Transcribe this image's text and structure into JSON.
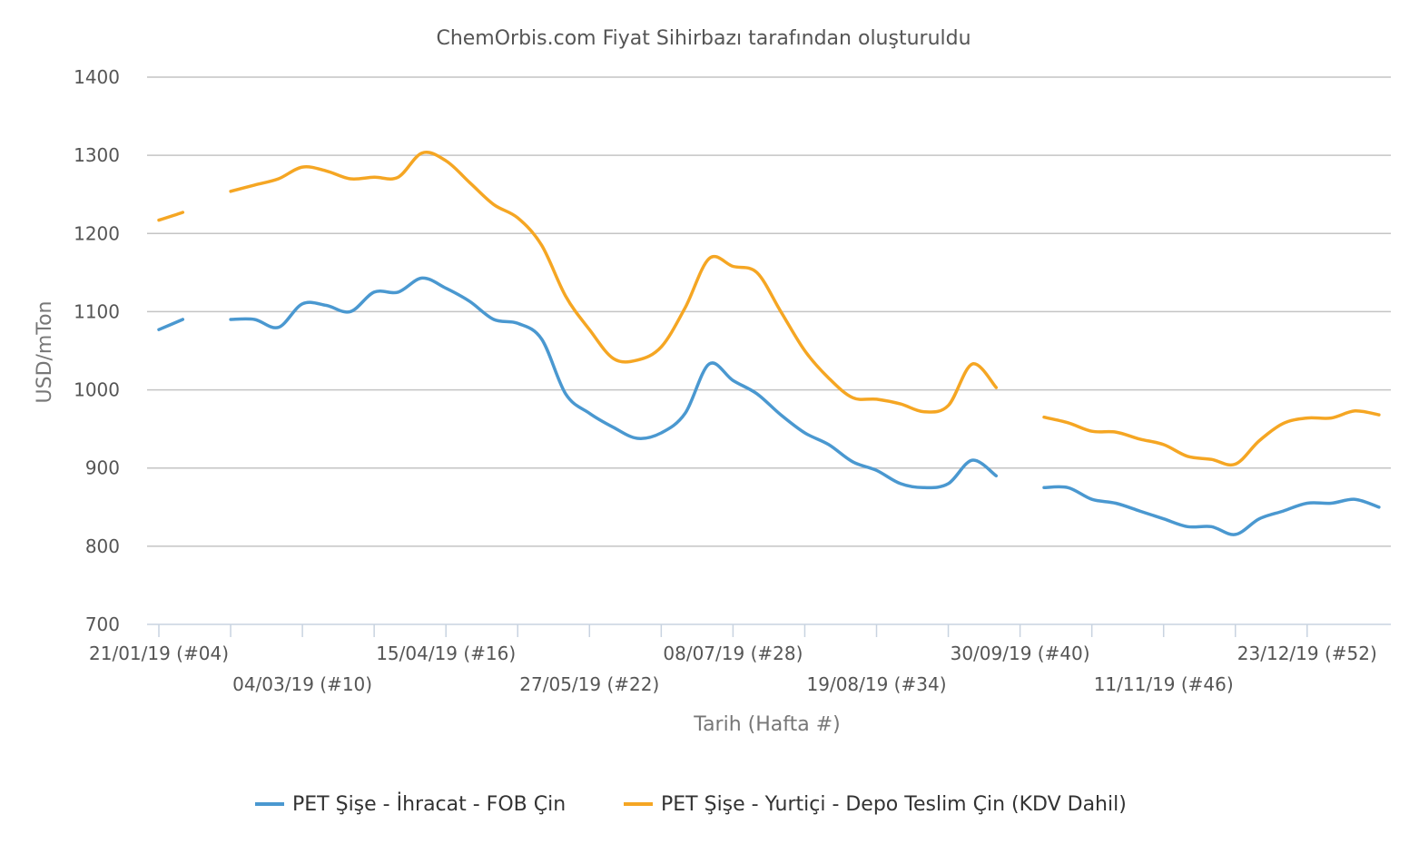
{
  "chart_data": {
    "type": "line",
    "subtitle": "ChemOrbis.com Fiyat Sihirbazı tarafından oluşturuldu",
    "xlabel": "Tarih (Hafta #)",
    "ylabel": "USD/mTon",
    "ylim": [
      700,
      1400
    ],
    "yticks": [
      700,
      800,
      900,
      1000,
      1100,
      1200,
      1300,
      1400
    ],
    "grid": true,
    "legend_position": "bottom",
    "x_range_weeks": [
      4,
      52
    ],
    "x_tick_labels": [
      {
        "week": 4,
        "label": "21/01/19 (#04)",
        "row": 0
      },
      {
        "week": 10,
        "label": "04/03/19 (#10)",
        "row": 1
      },
      {
        "week": 16,
        "label": "15/04/19 (#16)",
        "row": 0
      },
      {
        "week": 22,
        "label": "27/05/19 (#22)",
        "row": 1
      },
      {
        "week": 28,
        "label": "08/07/19 (#28)",
        "row": 0
      },
      {
        "week": 34,
        "label": "19/08/19 (#34)",
        "row": 1
      },
      {
        "week": 40,
        "label": "30/09/19 (#40)",
        "row": 0
      },
      {
        "week": 46,
        "label": "11/11/19 (#46)",
        "row": 1
      },
      {
        "week": 52,
        "label": "23/12/19 (#52)",
        "row": 0
      }
    ],
    "series": [
      {
        "name": "PET Şişe - İhracat - FOB Çin",
        "color": "#4a98d0",
        "segments": [
          [
            [
              4,
              1077
            ],
            [
              5,
              1090
            ]
          ],
          [
            [
              7,
              1090
            ],
            [
              8,
              1090
            ],
            [
              9,
              1080
            ],
            [
              10,
              1110
            ],
            [
              11,
              1108
            ],
            [
              12,
              1100
            ],
            [
              13,
              1125
            ],
            [
              14,
              1125
            ],
            [
              15,
              1143
            ],
            [
              16,
              1130
            ],
            [
              17,
              1113
            ],
            [
              18,
              1090
            ],
            [
              19,
              1085
            ],
            [
              20,
              1065
            ],
            [
              21,
              995
            ],
            [
              22,
              970
            ],
            [
              23,
              952
            ],
            [
              24,
              938
            ],
            [
              25,
              945
            ],
            [
              26,
              970
            ],
            [
              27,
              1033
            ],
            [
              28,
              1012
            ],
            [
              29,
              995
            ],
            [
              30,
              968
            ],
            [
              31,
              945
            ],
            [
              32,
              930
            ],
            [
              33,
              908
            ],
            [
              34,
              897
            ],
            [
              35,
              880
            ],
            [
              36,
              875
            ],
            [
              37,
              880
            ],
            [
              38,
              910
            ],
            [
              39,
              890
            ]
          ],
          [
            [
              41,
              875
            ],
            [
              42,
              875
            ],
            [
              43,
              860
            ],
            [
              44,
              855
            ],
            [
              45,
              845
            ],
            [
              46,
              835
            ],
            [
              47,
              825
            ],
            [
              48,
              825
            ],
            [
              49,
              815
            ],
            [
              50,
              835
            ],
            [
              51,
              845
            ],
            [
              52,
              855
            ],
            [
              53,
              855
            ],
            [
              54,
              860
            ],
            [
              55,
              850
            ]
          ]
        ]
      },
      {
        "name": "PET Şişe - Yurtiçi - Depo Teslim Çin  (KDV Dahil)",
        "color": "#f5a623",
        "segments": [
          [
            [
              4,
              1217
            ],
            [
              5,
              1227
            ]
          ],
          [
            [
              7,
              1254
            ],
            [
              8,
              1262
            ],
            [
              9,
              1270
            ],
            [
              10,
              1285
            ],
            [
              11,
              1280
            ],
            [
              12,
              1270
            ],
            [
              13,
              1272
            ],
            [
              14,
              1272
            ],
            [
              15,
              1303
            ],
            [
              16,
              1293
            ],
            [
              17,
              1265
            ],
            [
              18,
              1237
            ],
            [
              19,
              1220
            ],
            [
              20,
              1185
            ],
            [
              21,
              1120
            ],
            [
              22,
              1077
            ],
            [
              23,
              1040
            ],
            [
              24,
              1038
            ],
            [
              25,
              1055
            ],
            [
              26,
              1105
            ],
            [
              27,
              1168
            ],
            [
              28,
              1158
            ],
            [
              29,
              1150
            ],
            [
              30,
              1100
            ],
            [
              31,
              1050
            ],
            [
              32,
              1015
            ],
            [
              33,
              990
            ],
            [
              34,
              988
            ],
            [
              35,
              982
            ],
            [
              36,
              972
            ],
            [
              37,
              980
            ],
            [
              38,
              1033
            ],
            [
              39,
              1003
            ]
          ],
          [
            [
              41,
              965
            ],
            [
              42,
              958
            ],
            [
              43,
              947
            ],
            [
              44,
              946
            ],
            [
              45,
              937
            ],
            [
              46,
              930
            ],
            [
              47,
              915
            ],
            [
              48,
              911
            ],
            [
              49,
              905
            ],
            [
              50,
              935
            ],
            [
              51,
              957
            ],
            [
              52,
              964
            ],
            [
              53,
              964
            ],
            [
              54,
              973
            ],
            [
              55,
              968
            ]
          ]
        ]
      }
    ]
  }
}
